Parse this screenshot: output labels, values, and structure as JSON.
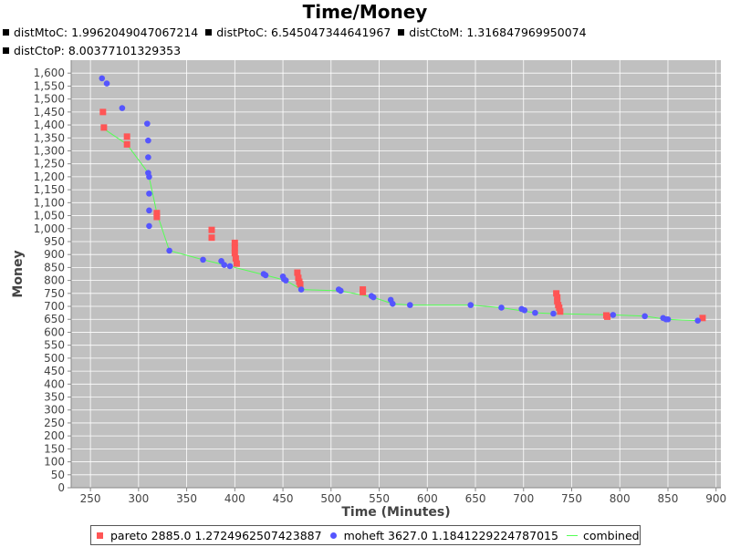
{
  "title": "Time/Money",
  "metrics": [
    "distMtoC: 1.9962049047067214",
    "distPtoC: 6.545047344641967",
    "distCtoM: 1.316847969950074",
    "distCtoP: 8.00377101329353"
  ],
  "legend": {
    "pareto": "pareto 2885.0 1.2724962507423887",
    "moheft": "moheft 3627.0 1.1841229224787015",
    "combined": "combined"
  },
  "colors": {
    "pareto": "#ff5555",
    "moheft": "#5555ff",
    "combined": "#55ff55",
    "plot_bg": "#c0c0c0"
  },
  "chart_data": {
    "type": "scatter",
    "title": "Time/Money",
    "xlabel": "Time (Minutes)",
    "ylabel": "Money",
    "xlim": [
      230,
      905
    ],
    "ylim": [
      0,
      1650
    ],
    "xticks": [
      250,
      300,
      350,
      400,
      450,
      500,
      550,
      600,
      650,
      700,
      750,
      800,
      850,
      900
    ],
    "yticks": [
      0,
      50,
      100,
      150,
      200,
      250,
      300,
      350,
      400,
      450,
      500,
      550,
      600,
      650,
      700,
      750,
      800,
      850,
      900,
      950,
      1000,
      1050,
      1100,
      1150,
      1200,
      1250,
      1300,
      1350,
      1400,
      1450,
      1500,
      1550,
      1600
    ],
    "yticklabels": [
      "0",
      "50",
      "100",
      "150",
      "200",
      "250",
      "300",
      "350",
      "400",
      "450",
      "500",
      "550",
      "600",
      "650",
      "700",
      "750",
      "800",
      "850",
      "900",
      "950",
      "1,000",
      "1,050",
      "1,100",
      "1,150",
      "1,200",
      "1,250",
      "1,300",
      "1,350",
      "1,400",
      "1,450",
      "1,500",
      "1,550",
      "1,600"
    ],
    "series": [
      {
        "name": "pareto",
        "marker": "square",
        "points": [
          [
            263,
            1450
          ],
          [
            264,
            1390
          ],
          [
            288,
            1355
          ],
          [
            288,
            1325
          ],
          [
            319,
            1060
          ],
          [
            319,
            1045
          ],
          [
            376,
            995
          ],
          [
            376,
            965
          ],
          [
            400,
            945
          ],
          [
            400,
            925
          ],
          [
            400,
            905
          ],
          [
            401,
            885
          ],
          [
            402,
            865
          ],
          [
            465,
            830
          ],
          [
            466,
            810
          ],
          [
            467,
            795
          ],
          [
            468,
            785
          ],
          [
            533,
            765
          ],
          [
            533,
            755
          ],
          [
            734,
            750
          ],
          [
            735,
            735
          ],
          [
            735,
            720
          ],
          [
            736,
            705
          ],
          [
            737,
            695
          ],
          [
            738,
            680
          ],
          [
            786,
            665
          ],
          [
            787,
            660
          ],
          [
            886,
            655
          ]
        ]
      },
      {
        "name": "moheft",
        "marker": "circle",
        "points": [
          [
            262,
            1580
          ],
          [
            267,
            1560
          ],
          [
            283,
            1465
          ],
          [
            309,
            1405
          ],
          [
            310,
            1340
          ],
          [
            310,
            1275
          ],
          [
            310,
            1215
          ],
          [
            311,
            1200
          ],
          [
            311,
            1135
          ],
          [
            311,
            1070
          ],
          [
            311,
            1010
          ],
          [
            332,
            915
          ],
          [
            367,
            880
          ],
          [
            386,
            875
          ],
          [
            389,
            860
          ],
          [
            395,
            855
          ],
          [
            430,
            825
          ],
          [
            432,
            820
          ],
          [
            450,
            815
          ],
          [
            451,
            805
          ],
          [
            453,
            800
          ],
          [
            469,
            765
          ],
          [
            508,
            765
          ],
          [
            510,
            760
          ],
          [
            542,
            740
          ],
          [
            544,
            735
          ],
          [
            562,
            725
          ],
          [
            564,
            710
          ],
          [
            582,
            705
          ],
          [
            645,
            705
          ],
          [
            677,
            695
          ],
          [
            698,
            690
          ],
          [
            701,
            685
          ],
          [
            712,
            675
          ],
          [
            731,
            672
          ],
          [
            793,
            667
          ],
          [
            826,
            662
          ],
          [
            845,
            655
          ],
          [
            848,
            650
          ],
          [
            850,
            650
          ],
          [
            881,
            645
          ]
        ]
      },
      {
        "name": "combined",
        "marker": "line",
        "points": [
          [
            262,
            1390
          ],
          [
            288,
            1325
          ],
          [
            310,
            1215
          ],
          [
            319,
            1060
          ],
          [
            332,
            915
          ],
          [
            367,
            880
          ],
          [
            395,
            855
          ],
          [
            432,
            820
          ],
          [
            453,
            800
          ],
          [
            469,
            765
          ],
          [
            510,
            760
          ],
          [
            544,
            735
          ],
          [
            564,
            710
          ],
          [
            582,
            705
          ],
          [
            645,
            705
          ],
          [
            677,
            695
          ],
          [
            712,
            675
          ],
          [
            731,
            672
          ],
          [
            793,
            667
          ],
          [
            826,
            662
          ],
          [
            848,
            650
          ],
          [
            881,
            645
          ]
        ]
      }
    ]
  }
}
